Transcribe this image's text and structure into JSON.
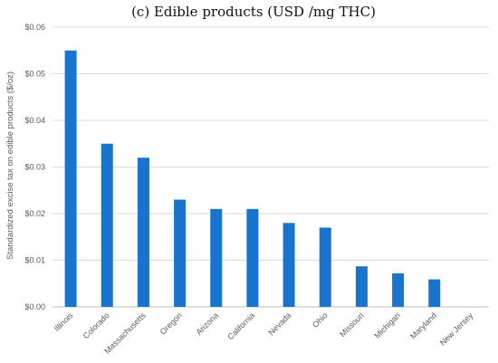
{
  "chart_data": {
    "type": "bar",
    "title": "(c) Edible products (USD /mg THC)",
    "xlabel": "",
    "ylabel": "Standardized excise tax on edible products ($/oz)",
    "ylim": [
      0,
      0.06
    ],
    "yticks": [
      {
        "value": 0,
        "label": "$0.00"
      },
      {
        "value": 0.01,
        "label": "$0.01"
      },
      {
        "value": 0.02,
        "label": "$0.02"
      },
      {
        "value": 0.03,
        "label": "$0.03"
      },
      {
        "value": 0.04,
        "label": "$0.04"
      },
      {
        "value": 0.05,
        "label": "$0.05"
      },
      {
        "value": 0.06,
        "label": "$0.06"
      }
    ],
    "categories": [
      "Illinois",
      "Colorado",
      "Massachusetts",
      "Oregon",
      "Arizona",
      "California",
      "Nevada",
      "Ohio",
      "Missouri",
      "Michigan",
      "Maryland",
      "New Jersey"
    ],
    "values": [
      0.055,
      0.035,
      0.032,
      0.023,
      0.021,
      0.021,
      0.018,
      0.017,
      0.0087,
      0.0072,
      0.0059,
      0
    ],
    "bar_color": "#1874cd",
    "grid": true,
    "legend": "none"
  }
}
